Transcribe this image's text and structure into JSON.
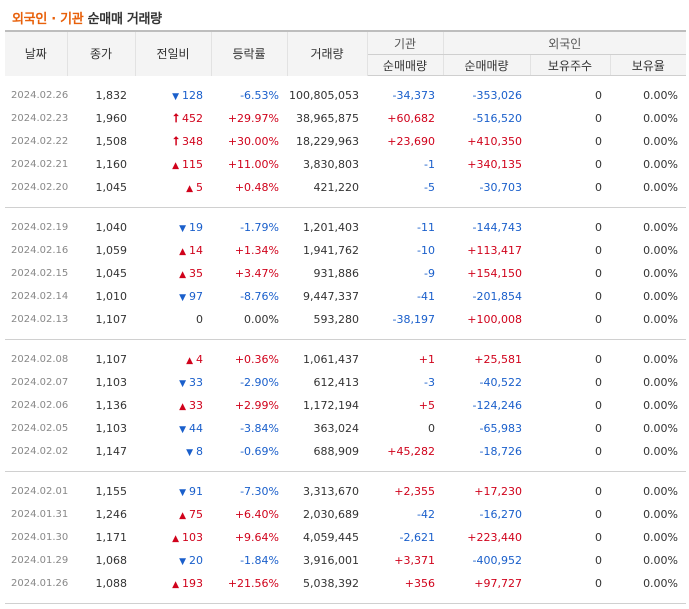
{
  "title": {
    "highlight": "외국인 · 기관",
    "rest": "순매매 거래량"
  },
  "headers": {
    "date": "날짜",
    "close": "종가",
    "change": "전일비",
    "rate": "등락률",
    "volume": "거래량",
    "inst_group": "기관",
    "inst_net": "순매매량",
    "foreign_group": "외국인",
    "foreign_net": "순매매량",
    "foreign_shares": "보유주수",
    "foreign_ratio": "보유율"
  },
  "groups": [
    [
      {
        "date": "2024.02.26",
        "close": "1,832",
        "dir": "down",
        "change": "128",
        "rate": "-6.53%",
        "volume": "100,805,053",
        "inst": "-34,373",
        "foreign": "-353,026",
        "shares": "0",
        "ratio": "0.00%"
      },
      {
        "date": "2024.02.23",
        "close": "1,960",
        "dir": "upper",
        "change": "452",
        "rate": "+29.97%",
        "volume": "38,965,875",
        "inst": "+60,682",
        "foreign": "-516,520",
        "shares": "0",
        "ratio": "0.00%"
      },
      {
        "date": "2024.02.22",
        "close": "1,508",
        "dir": "upper",
        "change": "348",
        "rate": "+30.00%",
        "volume": "18,229,963",
        "inst": "+23,690",
        "foreign": "+410,350",
        "shares": "0",
        "ratio": "0.00%"
      },
      {
        "date": "2024.02.21",
        "close": "1,160",
        "dir": "up",
        "change": "115",
        "rate": "+11.00%",
        "volume": "3,830,803",
        "inst": "-1",
        "foreign": "+340,135",
        "shares": "0",
        "ratio": "0.00%"
      },
      {
        "date": "2024.02.20",
        "close": "1,045",
        "dir": "up",
        "change": "5",
        "rate": "+0.48%",
        "volume": "421,220",
        "inst": "-5",
        "foreign": "-30,703",
        "shares": "0",
        "ratio": "0.00%"
      }
    ],
    [
      {
        "date": "2024.02.19",
        "close": "1,040",
        "dir": "down",
        "change": "19",
        "rate": "-1.79%",
        "volume": "1,201,403",
        "inst": "-11",
        "foreign": "-144,743",
        "shares": "0",
        "ratio": "0.00%"
      },
      {
        "date": "2024.02.16",
        "close": "1,059",
        "dir": "up",
        "change": "14",
        "rate": "+1.34%",
        "volume": "1,941,762",
        "inst": "-10",
        "foreign": "+113,417",
        "shares": "0",
        "ratio": "0.00%"
      },
      {
        "date": "2024.02.15",
        "close": "1,045",
        "dir": "up",
        "change": "35",
        "rate": "+3.47%",
        "volume": "931,886",
        "inst": "-9",
        "foreign": "+154,150",
        "shares": "0",
        "ratio": "0.00%"
      },
      {
        "date": "2024.02.14",
        "close": "1,010",
        "dir": "down",
        "change": "97",
        "rate": "-8.76%",
        "volume": "9,447,337",
        "inst": "-41",
        "foreign": "-201,854",
        "shares": "0",
        "ratio": "0.00%"
      },
      {
        "date": "2024.02.13",
        "close": "1,107",
        "dir": "flat",
        "change": "0",
        "rate": "0.00%",
        "volume": "593,280",
        "inst": "-38,197",
        "foreign": "+100,008",
        "shares": "0",
        "ratio": "0.00%"
      }
    ],
    [
      {
        "date": "2024.02.08",
        "close": "1,107",
        "dir": "up",
        "change": "4",
        "rate": "+0.36%",
        "volume": "1,061,437",
        "inst": "+1",
        "foreign": "+25,581",
        "shares": "0",
        "ratio": "0.00%"
      },
      {
        "date": "2024.02.07",
        "close": "1,103",
        "dir": "down",
        "change": "33",
        "rate": "-2.90%",
        "volume": "612,413",
        "inst": "-3",
        "foreign": "-40,522",
        "shares": "0",
        "ratio": "0.00%"
      },
      {
        "date": "2024.02.06",
        "close": "1,136",
        "dir": "up",
        "change": "33",
        "rate": "+2.99%",
        "volume": "1,172,194",
        "inst": "+5",
        "foreign": "-124,246",
        "shares": "0",
        "ratio": "0.00%"
      },
      {
        "date": "2024.02.05",
        "close": "1,103",
        "dir": "down",
        "change": "44",
        "rate": "-3.84%",
        "volume": "363,024",
        "inst": "0",
        "foreign": "-65,983",
        "shares": "0",
        "ratio": "0.00%"
      },
      {
        "date": "2024.02.02",
        "close": "1,147",
        "dir": "down",
        "change": "8",
        "rate": "-0.69%",
        "volume": "688,909",
        "inst": "+45,282",
        "foreign": "-18,726",
        "shares": "0",
        "ratio": "0.00%"
      }
    ],
    [
      {
        "date": "2024.02.01",
        "close": "1,155",
        "dir": "down",
        "change": "91",
        "rate": "-7.30%",
        "volume": "3,313,670",
        "inst": "+2,355",
        "foreign": "+17,230",
        "shares": "0",
        "ratio": "0.00%"
      },
      {
        "date": "2024.01.31",
        "close": "1,246",
        "dir": "up",
        "change": "75",
        "rate": "+6.40%",
        "volume": "2,030,689",
        "inst": "-42",
        "foreign": "-16,270",
        "shares": "0",
        "ratio": "0.00%"
      },
      {
        "date": "2024.01.30",
        "close": "1,171",
        "dir": "up",
        "change": "103",
        "rate": "+9.64%",
        "volume": "4,059,445",
        "inst": "-2,621",
        "foreign": "+223,440",
        "shares": "0",
        "ratio": "0.00%"
      },
      {
        "date": "2024.01.29",
        "close": "1,068",
        "dir": "down",
        "change": "20",
        "rate": "-1.84%",
        "volume": "3,916,001",
        "inst": "+3,371",
        "foreign": "-400,952",
        "shares": "0",
        "ratio": "0.00%"
      },
      {
        "date": "2024.01.26",
        "close": "1,088",
        "dir": "up",
        "change": "193",
        "rate": "+21.56%",
        "volume": "5,038,392",
        "inst": "+356",
        "foreign": "+97,727",
        "shares": "0",
        "ratio": "0.00%"
      }
    ]
  ],
  "colors": {
    "up": "#d0021b",
    "down": "#1a5fcb",
    "accent": "#e8600a"
  },
  "icons": {
    "up": "triangle-up-icon",
    "down": "triangle-down-icon",
    "upper": "upper-limit-arrow-icon"
  }
}
